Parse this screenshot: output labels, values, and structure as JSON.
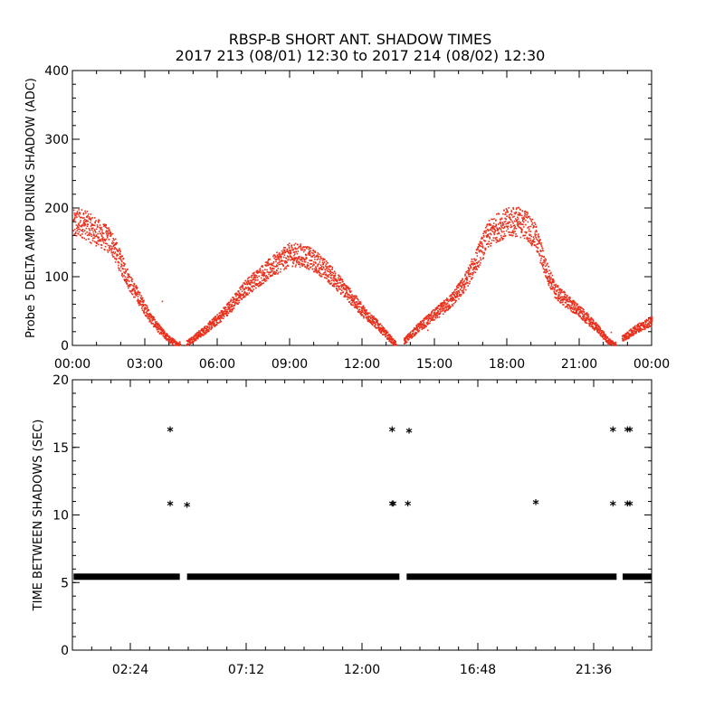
{
  "title_line1": "RBSP-B SHORT ANT. SHADOW TIMES",
  "title_line2": "2017 213 (08/01) 12:30 to 2017 214 (08/02) 12:30",
  "chart_data": [
    {
      "type": "scatter",
      "ylabel": "Probe 5 DELTA AMP DURING SHADOW (ADC)",
      "xlim": [
        0,
        24
      ],
      "ylim": [
        0,
        400
      ],
      "x_ticks": [
        "00:00",
        "03:00",
        "06:00",
        "09:00",
        "12:00",
        "15:00",
        "18:00",
        "21:00",
        "00:00"
      ],
      "y_ticks": [
        "0",
        "100",
        "200",
        "300",
        "400"
      ],
      "color": "#e8301c",
      "envelope": [
        [
          0.0,
          175
        ],
        [
          0.4,
          178
        ],
        [
          0.8,
          168
        ],
        [
          1.2,
          160
        ],
        [
          1.6,
          150
        ],
        [
          2.0,
          118
        ],
        [
          2.4,
          88
        ],
        [
          2.8,
          65
        ],
        [
          3.2,
          40
        ],
        [
          3.6,
          22
        ],
        [
          4.0,
          8
        ],
        [
          4.3,
          2
        ],
        [
          4.6,
          0
        ],
        [
          4.8,
          5
        ],
        [
          5.4,
          20
        ],
        [
          6.0,
          38
        ],
        [
          6.6,
          60
        ],
        [
          7.2,
          85
        ],
        [
          7.8,
          102
        ],
        [
          8.4,
          118
        ],
        [
          9.0,
          132
        ],
        [
          9.6,
          130
        ],
        [
          10.2,
          118
        ],
        [
          10.8,
          98
        ],
        [
          11.4,
          75
        ],
        [
          12.0,
          50
        ],
        [
          12.6,
          30
        ],
        [
          13.0,
          15
        ],
        [
          13.4,
          0
        ],
        [
          13.7,
          5
        ],
        [
          14.3,
          25
        ],
        [
          15.0,
          45
        ],
        [
          15.6,
          62
        ],
        [
          16.2,
          88
        ],
        [
          16.8,
          130
        ],
        [
          17.2,
          160
        ],
        [
          17.6,
          172
        ],
        [
          18.0,
          178
        ],
        [
          18.4,
          180
        ],
        [
          18.8,
          175
        ],
        [
          19.2,
          155
        ],
        [
          19.6,
          110
        ],
        [
          20.0,
          78
        ],
        [
          20.6,
          60
        ],
        [
          21.2,
          42
        ],
        [
          21.8,
          22
        ],
        [
          22.2,
          5
        ],
        [
          22.5,
          0
        ],
        [
          22.8,
          10
        ],
        [
          23.4,
          25
        ],
        [
          24.0,
          35
        ]
      ]
    },
    {
      "type": "scatter",
      "ylabel": "TIME BETWEEN SHADOWS (SEC)",
      "xlim": [
        0,
        24
      ],
      "ylim": [
        0,
        20
      ],
      "x_ticks": [
        {
          "hour": 2.4,
          "label": "02:24"
        },
        {
          "hour": 7.2,
          "label": "07:12"
        },
        {
          "hour": 12.0,
          "label": "12:00"
        },
        {
          "hour": 16.8,
          "label": "16:48"
        },
        {
          "hour": 21.6,
          "label": "21:36"
        }
      ],
      "y_ticks": [
        "0",
        "5",
        "10",
        "15",
        "20"
      ],
      "marker": "*",
      "color": "#000000",
      "baseline": {
        "y": 5.4,
        "segments": [
          [
            0.05,
            4.45
          ],
          [
            4.75,
            13.55
          ],
          [
            13.85,
            22.55
          ],
          [
            22.8,
            23.98
          ]
        ]
      },
      "outliers": [
        {
          "x": 4.05,
          "y": 16.2
        },
        {
          "x": 4.05,
          "y": 10.7
        },
        {
          "x": 4.75,
          "y": 10.6
        },
        {
          "x": 13.25,
          "y": 16.2
        },
        {
          "x": 13.25,
          "y": 10.7
        },
        {
          "x": 13.3,
          "y": 10.7
        },
        {
          "x": 13.9,
          "y": 10.7
        },
        {
          "x": 13.95,
          "y": 16.1
        },
        {
          "x": 19.2,
          "y": 10.8
        },
        {
          "x": 22.4,
          "y": 16.2
        },
        {
          "x": 22.4,
          "y": 10.7
        },
        {
          "x": 23.0,
          "y": 16.2
        },
        {
          "x": 23.1,
          "y": 16.2
        },
        {
          "x": 23.0,
          "y": 10.7
        },
        {
          "x": 23.1,
          "y": 10.7
        }
      ]
    }
  ]
}
